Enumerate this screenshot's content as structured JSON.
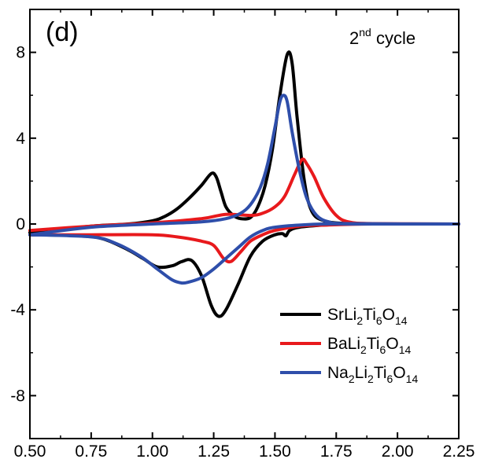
{
  "chart_data": {
    "type": "line",
    "panel_label": "(d)",
    "annotation": {
      "main": "2",
      "sup": "nd",
      "rest": " cycle"
    },
    "title": "",
    "xlabel": "",
    "ylabel": "",
    "xlim": [
      0.5,
      2.25
    ],
    "ylim": [
      -10,
      10
    ],
    "xticks": [
      0.5,
      0.75,
      1.0,
      1.25,
      1.5,
      1.75,
      2.0,
      2.25
    ],
    "xtick_labels": [
      "0.50",
      "0.75",
      "1.00",
      "1.25",
      "1.50",
      "1.75",
      "2.00",
      "2.25"
    ],
    "yticks": [
      -8,
      -4,
      0,
      4,
      8
    ],
    "ytick_labels": [
      "-8",
      "-4",
      "0",
      "4",
      "8"
    ],
    "grid": false,
    "legend_position": "bottom-right",
    "series": [
      {
        "name": "SrLi2Ti6O14",
        "legend": [
          {
            "t": "SrLi"
          },
          {
            "t": "2",
            "sub": true
          },
          {
            "t": "Ti"
          },
          {
            "t": "6",
            "sub": true
          },
          {
            "t": "O"
          },
          {
            "t": "14",
            "sub": true
          }
        ],
        "color": "#000000",
        "charge": [
          [
            0.5,
            -0.4
          ],
          [
            0.75,
            -0.1
          ],
          [
            0.9,
            0.0
          ],
          [
            1.0,
            0.15
          ],
          [
            1.05,
            0.35
          ],
          [
            1.1,
            0.7
          ],
          [
            1.15,
            1.2
          ],
          [
            1.2,
            1.8
          ],
          [
            1.24,
            2.35
          ],
          [
            1.26,
            2.2
          ],
          [
            1.28,
            1.5
          ],
          [
            1.3,
            0.8
          ],
          [
            1.33,
            0.4
          ],
          [
            1.36,
            0.25
          ],
          [
            1.4,
            0.3
          ],
          [
            1.43,
            0.8
          ],
          [
            1.46,
            1.8
          ],
          [
            1.49,
            3.5
          ],
          [
            1.52,
            6.0
          ],
          [
            1.55,
            7.9
          ],
          [
            1.57,
            7.5
          ],
          [
            1.59,
            5.0
          ],
          [
            1.62,
            2.0
          ],
          [
            1.65,
            0.6
          ],
          [
            1.7,
            0.15
          ],
          [
            1.8,
            0.02
          ],
          [
            2.0,
            0.0
          ],
          [
            2.25,
            0.0
          ]
        ],
        "discharge": [
          [
            2.25,
            0.0
          ],
          [
            2.0,
            0.0
          ],
          [
            1.8,
            0.0
          ],
          [
            1.7,
            -0.05
          ],
          [
            1.6,
            -0.15
          ],
          [
            1.56,
            -0.3
          ],
          [
            1.545,
            -0.55
          ],
          [
            1.53,
            -0.45
          ],
          [
            1.5,
            -0.5
          ],
          [
            1.45,
            -0.8
          ],
          [
            1.4,
            -1.5
          ],
          [
            1.35,
            -2.8
          ],
          [
            1.3,
            -4.0
          ],
          [
            1.27,
            -4.3
          ],
          [
            1.24,
            -3.8
          ],
          [
            1.2,
            -2.4
          ],
          [
            1.16,
            -1.7
          ],
          [
            1.12,
            -1.75
          ],
          [
            1.08,
            -1.95
          ],
          [
            1.02,
            -2.0
          ],
          [
            0.96,
            -1.6
          ],
          [
            0.9,
            -1.2
          ],
          [
            0.8,
            -0.7
          ],
          [
            0.7,
            -0.55
          ],
          [
            0.5,
            -0.5
          ]
        ]
      },
      {
        "name": "BaLi2Ti6O14",
        "legend": [
          {
            "t": "BaLi"
          },
          {
            "t": "2",
            "sub": true
          },
          {
            "t": "Ti"
          },
          {
            "t": "6",
            "sub": true
          },
          {
            "t": "O"
          },
          {
            "t": "14",
            "sub": true
          }
        ],
        "color": "#e8191c",
        "charge": [
          [
            0.5,
            -0.3
          ],
          [
            0.75,
            -0.1
          ],
          [
            1.0,
            0.05
          ],
          [
            1.2,
            0.25
          ],
          [
            1.3,
            0.45
          ],
          [
            1.4,
            0.4
          ],
          [
            1.45,
            0.5
          ],
          [
            1.5,
            0.8
          ],
          [
            1.54,
            1.3
          ],
          [
            1.58,
            2.3
          ],
          [
            1.61,
            3.0
          ],
          [
            1.63,
            2.8
          ],
          [
            1.66,
            2.2
          ],
          [
            1.7,
            1.2
          ],
          [
            1.75,
            0.4
          ],
          [
            1.8,
            0.1
          ],
          [
            1.9,
            0.02
          ],
          [
            2.25,
            0.0
          ]
        ],
        "discharge": [
          [
            2.25,
            0.0
          ],
          [
            1.9,
            0.0
          ],
          [
            1.7,
            -0.05
          ],
          [
            1.6,
            -0.1
          ],
          [
            1.5,
            -0.3
          ],
          [
            1.45,
            -0.5
          ],
          [
            1.4,
            -0.8
          ],
          [
            1.36,
            -1.3
          ],
          [
            1.32,
            -1.75
          ],
          [
            1.29,
            -1.6
          ],
          [
            1.25,
            -1.0
          ],
          [
            1.2,
            -0.8
          ],
          [
            1.1,
            -0.6
          ],
          [
            1.0,
            -0.5
          ],
          [
            0.75,
            -0.5
          ],
          [
            0.5,
            -0.5
          ]
        ]
      },
      {
        "name": "Na2Li2Ti6O14",
        "legend": [
          {
            "t": "Na"
          },
          {
            "t": "2",
            "sub": true
          },
          {
            "t": "Li"
          },
          {
            "t": "2",
            "sub": true
          },
          {
            "t": "Ti"
          },
          {
            "t": "6",
            "sub": true
          },
          {
            "t": "O"
          },
          {
            "t": "14",
            "sub": true
          }
        ],
        "color": "#2e4eaa",
        "charge": [
          [
            0.5,
            -0.5
          ],
          [
            0.75,
            -0.15
          ],
          [
            1.0,
            0.0
          ],
          [
            1.2,
            0.1
          ],
          [
            1.3,
            0.25
          ],
          [
            1.36,
            0.5
          ],
          [
            1.4,
            0.9
          ],
          [
            1.44,
            1.7
          ],
          [
            1.47,
            2.8
          ],
          [
            1.5,
            4.5
          ],
          [
            1.52,
            5.7
          ],
          [
            1.535,
            6.0
          ],
          [
            1.55,
            5.7
          ],
          [
            1.57,
            4.3
          ],
          [
            1.6,
            2.5
          ],
          [
            1.63,
            1.2
          ],
          [
            1.67,
            0.4
          ],
          [
            1.72,
            0.1
          ],
          [
            1.8,
            0.02
          ],
          [
            2.25,
            0.0
          ]
        ],
        "discharge": [
          [
            2.25,
            0.0
          ],
          [
            1.9,
            0.0
          ],
          [
            1.7,
            0.0
          ],
          [
            1.6,
            -0.05
          ],
          [
            1.5,
            -0.15
          ],
          [
            1.45,
            -0.3
          ],
          [
            1.4,
            -0.6
          ],
          [
            1.35,
            -1.1
          ],
          [
            1.3,
            -1.6
          ],
          [
            1.25,
            -2.1
          ],
          [
            1.2,
            -2.5
          ],
          [
            1.15,
            -2.7
          ],
          [
            1.12,
            -2.75
          ],
          [
            1.08,
            -2.6
          ],
          [
            1.02,
            -2.1
          ],
          [
            0.95,
            -1.5
          ],
          [
            0.85,
            -0.9
          ],
          [
            0.75,
            -0.6
          ],
          [
            0.5,
            -0.5
          ]
        ]
      }
    ]
  }
}
